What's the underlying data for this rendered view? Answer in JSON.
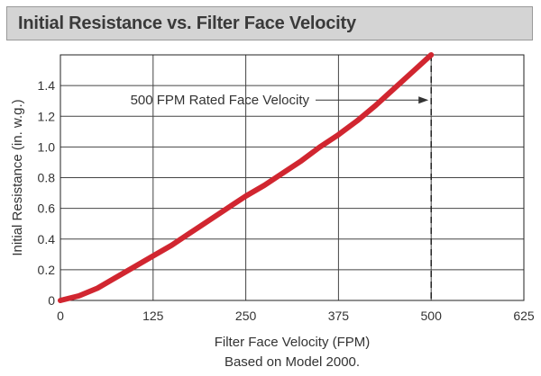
{
  "chart_data": {
    "type": "line",
    "title": "Initial Resistance vs. Filter Face Velocity",
    "xlabel": "Filter Face Velocity (FPM)",
    "subtitle": "Based on Model 2000.",
    "ylabel": "Initial Resistance (in. w.g.)",
    "xlim": [
      0,
      625
    ],
    "ylim": [
      0,
      1.6
    ],
    "x_ticks": [
      0,
      125,
      250,
      375,
      500,
      625
    ],
    "y_ticks": [
      0,
      0.2,
      0.4,
      0.6,
      0.8,
      1.0,
      1.2,
      1.4
    ],
    "y_tick_labels": [
      "0",
      "0.2",
      "0.4",
      "0.6",
      "0.8",
      "1.0",
      "1.2",
      "1.4"
    ],
    "grid": true,
    "series": [
      {
        "color": "#d12630",
        "x": [
          0,
          25,
          50,
          75,
          100,
          125,
          150,
          175,
          200,
          225,
          250,
          275,
          300,
          325,
          350,
          375,
          400,
          425,
          450,
          475,
          500
        ],
        "y": [
          0,
          0.03,
          0.08,
          0.15,
          0.22,
          0.29,
          0.36,
          0.44,
          0.52,
          0.6,
          0.68,
          0.75,
          0.83,
          0.91,
          1.0,
          1.08,
          1.17,
          1.27,
          1.38,
          1.49,
          1.6
        ]
      }
    ],
    "reference_line": {
      "x": 500,
      "style": "dashed",
      "label": "500 FPM Rated Face Velocity",
      "arrow_at_y": 1.3
    }
  }
}
